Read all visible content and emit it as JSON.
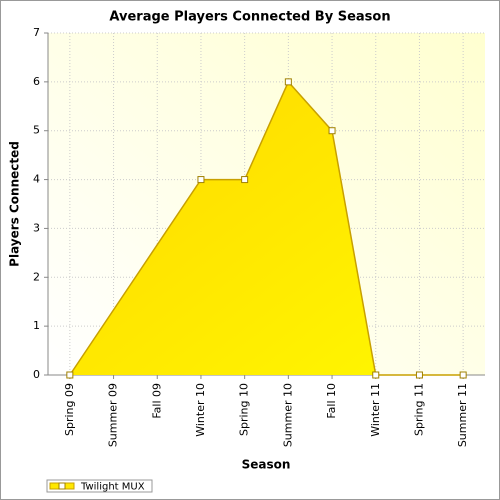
{
  "chart_data": {
    "type": "area",
    "title": "Average Players Connected By Season",
    "x_label": "Season",
    "y_label": "Players Connected",
    "categories": [
      "Spring 09",
      "Summer 09",
      "Fall 09",
      "Winter 10",
      "Spring 10",
      "Summer 10",
      "Fall 10",
      "Winter 11",
      "Spring 11",
      "Summer 11"
    ],
    "series": [
      {
        "name": "Twilight MUX",
        "color": "#ffe800",
        "values": [
          0,
          null,
          null,
          4,
          4,
          6,
          5,
          0,
          0,
          0
        ]
      }
    ],
    "ylim": [
      0,
      7
    ],
    "yticks": [
      0,
      1,
      2,
      3,
      4,
      5,
      6,
      7
    ],
    "grid": true,
    "connect_gaps": true,
    "legend": "bottom-left"
  }
}
